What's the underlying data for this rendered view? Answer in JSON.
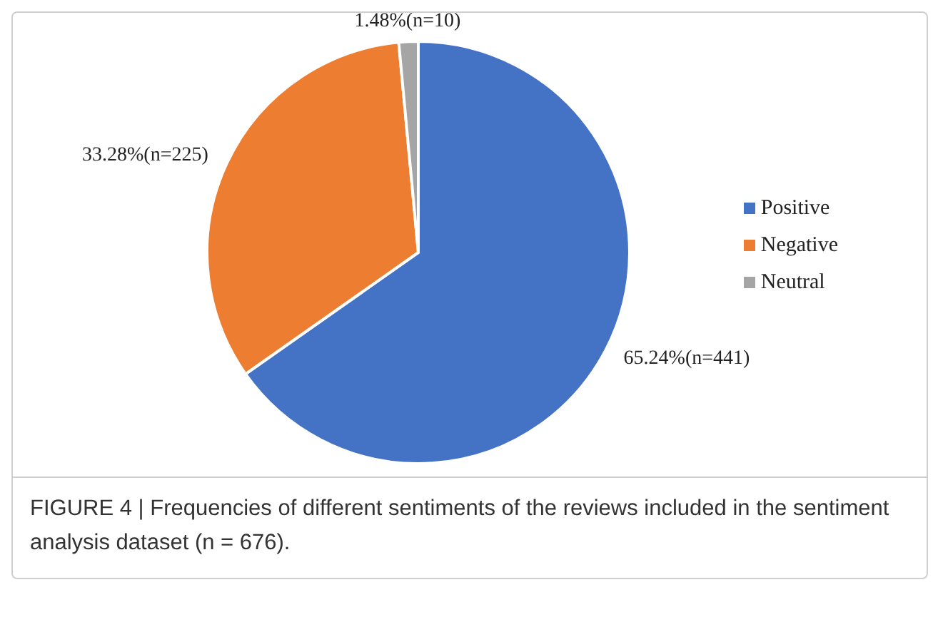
{
  "chart_data": {
    "type": "pie",
    "categories": [
      "Positive",
      "Negative",
      "Neutral"
    ],
    "values": [
      65.24,
      33.28,
      1.48
    ],
    "colors": [
      "#4472c4",
      "#ed7d31",
      "#a5a5a5"
    ],
    "value_labels": [
      "65.24%(n=441)",
      "33.28%(n=225)",
      "1.48%(n=10)"
    ],
    "legend": "right",
    "annotations": [
      "FIGURE 4 | Frequencies of different sentiments of the reviews included in the sentiment analysis dataset (n = 676)."
    ]
  }
}
